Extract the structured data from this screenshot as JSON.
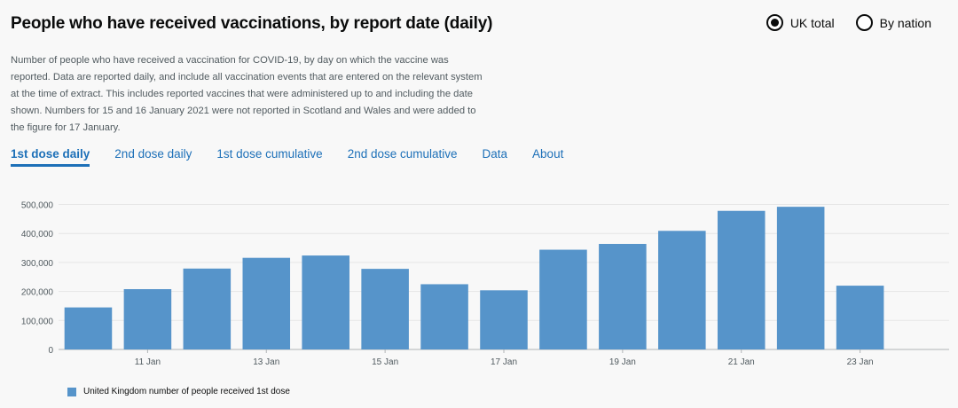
{
  "title": "People who have received vaccinations, by report date (daily)",
  "radios": [
    {
      "label": "UK total",
      "selected": true
    },
    {
      "label": "By nation",
      "selected": false
    }
  ],
  "description": "Number of people who have received a vaccination for COVID-19, by day on which the vaccine was reported. Data are reported daily, and include all vaccination events that are entered on the relevant system at the time of extract. This includes reported vaccines that were administered up to and including the date shown. Numbers for 15 and 16 January 2021 were not reported in Scotland and Wales and were added to the figure for 17 January.",
  "tabs": [
    {
      "label": "1st dose daily",
      "active": true
    },
    {
      "label": "2nd dose daily",
      "active": false
    },
    {
      "label": "1st dose cumulative",
      "active": false
    },
    {
      "label": "2nd dose cumulative",
      "active": false
    },
    {
      "label": "Data",
      "active": false
    },
    {
      "label": "About",
      "active": false
    }
  ],
  "legend": {
    "label": "United Kingdom number of people received 1st dose",
    "color": "#5694ca"
  },
  "colors": {
    "bar": "#5694ca",
    "link": "#1d70b8",
    "grid": "#e6e6e6",
    "axis": "#b1b4b6"
  },
  "chart_data": {
    "type": "bar",
    "categories": [
      "10 Jan",
      "11 Jan",
      "12 Jan",
      "13 Jan",
      "14 Jan",
      "15 Jan",
      "16 Jan",
      "17 Jan",
      "18 Jan",
      "19 Jan",
      "20 Jan",
      "21 Jan",
      "22 Jan",
      "23 Jan",
      "24 Jan"
    ],
    "tick_labels": [
      "11 Jan",
      "13 Jan",
      "15 Jan",
      "17 Jan",
      "19 Jan",
      "21 Jan",
      "23 Jan"
    ],
    "series": [
      {
        "name": "United Kingdom number of people received 1st dose",
        "values": [
          145000,
          208000,
          279000,
          316000,
          324000,
          278000,
          225000,
          204000,
          344000,
          364000,
          409000,
          478000,
          492000,
          220000,
          0
        ]
      }
    ],
    "y_ticks": [
      "0",
      "100,000",
      "200,000",
      "300,000",
      "400,000",
      "500,000"
    ],
    "ylim": [
      0,
      520000
    ],
    "grid": true,
    "legend_position": "bottom-left"
  }
}
